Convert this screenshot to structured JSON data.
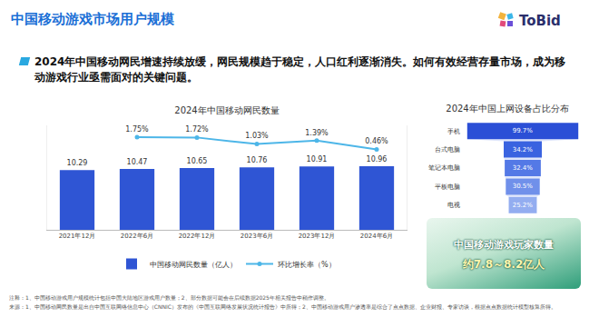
{
  "slide": {
    "title": "中国移动游戏市场用户规模",
    "logo": "ToBid",
    "headline": "2024年中国移动网民增速持续放缓，网民规模趋于稳定，人口红利逐渐消失。如何有效经营存量市场，成为移动游戏行业亟需面对的关键问题。",
    "callout": {
      "title": "中国移动游戏玩家数量",
      "value": "约7.8～8.2亿人"
    },
    "notes": [
      "注释：1、中国移动游戏用户规模统计包括中国大陆地区游戏用户数量；2、部分数据可能会在后续数据2025年相关报告中稍作调整。",
      "来源：1、中国移动网民数量是出自中国互联网络信息中心（CNNIC）发布的《中国互联网络发展状况统计报告》中所得；2、中国移动游戏用户渗透率是综合了点点数据、企业财报、专家访谈，根据点点数据统计模型核算所得。"
    ]
  },
  "chart_data": [
    {
      "type": "bar",
      "title": "2024年中国移动网民数量",
      "categories": [
        "2021年12月",
        "2022年6月",
        "2022年12月",
        "2023年6月",
        "2023年12月",
        "2024年6月"
      ],
      "series": [
        {
          "name": "中国移动网民数量（亿人）",
          "type": "bar",
          "color": "#2f55d4",
          "values": [
            10.29,
            10.47,
            10.65,
            10.76,
            10.91,
            10.96
          ]
        },
        {
          "name": "环比增长率（%）",
          "type": "line",
          "axis": "y2",
          "color": "#4db6e8",
          "marker": "circle",
          "values": [
            null,
            1.75,
            1.72,
            1.03,
            1.39,
            0.46
          ],
          "value_labels": [
            null,
            "1.75%",
            "1.72%",
            "1.03%",
            "1.39%",
            "0.46%"
          ]
        }
      ],
      "ylim": [
        0,
        18
      ],
      "y2lim": [
        -8,
        3
      ],
      "data_labels": true,
      "tick_labels": "x",
      "grid": false,
      "legend": "bottom"
    },
    {
      "type": "funnel",
      "title": "2024年中国上网设备占比分布",
      "categories": [
        "手机",
        "台式电脑",
        "笔记本电脑",
        "平板电脑",
        "电视"
      ],
      "values": [
        99.7,
        34.2,
        32.4,
        30.5,
        25.2
      ],
      "value_labels": [
        "99.7%",
        "34.2%",
        "32.4%",
        "30.5%",
        "25.2%"
      ],
      "colors": [
        "#2b4fd6",
        "#3a63e0",
        "#5479e6",
        "#7090ea",
        "#93adf0"
      ],
      "orientation": "horizontal",
      "data_labels": true
    }
  ]
}
